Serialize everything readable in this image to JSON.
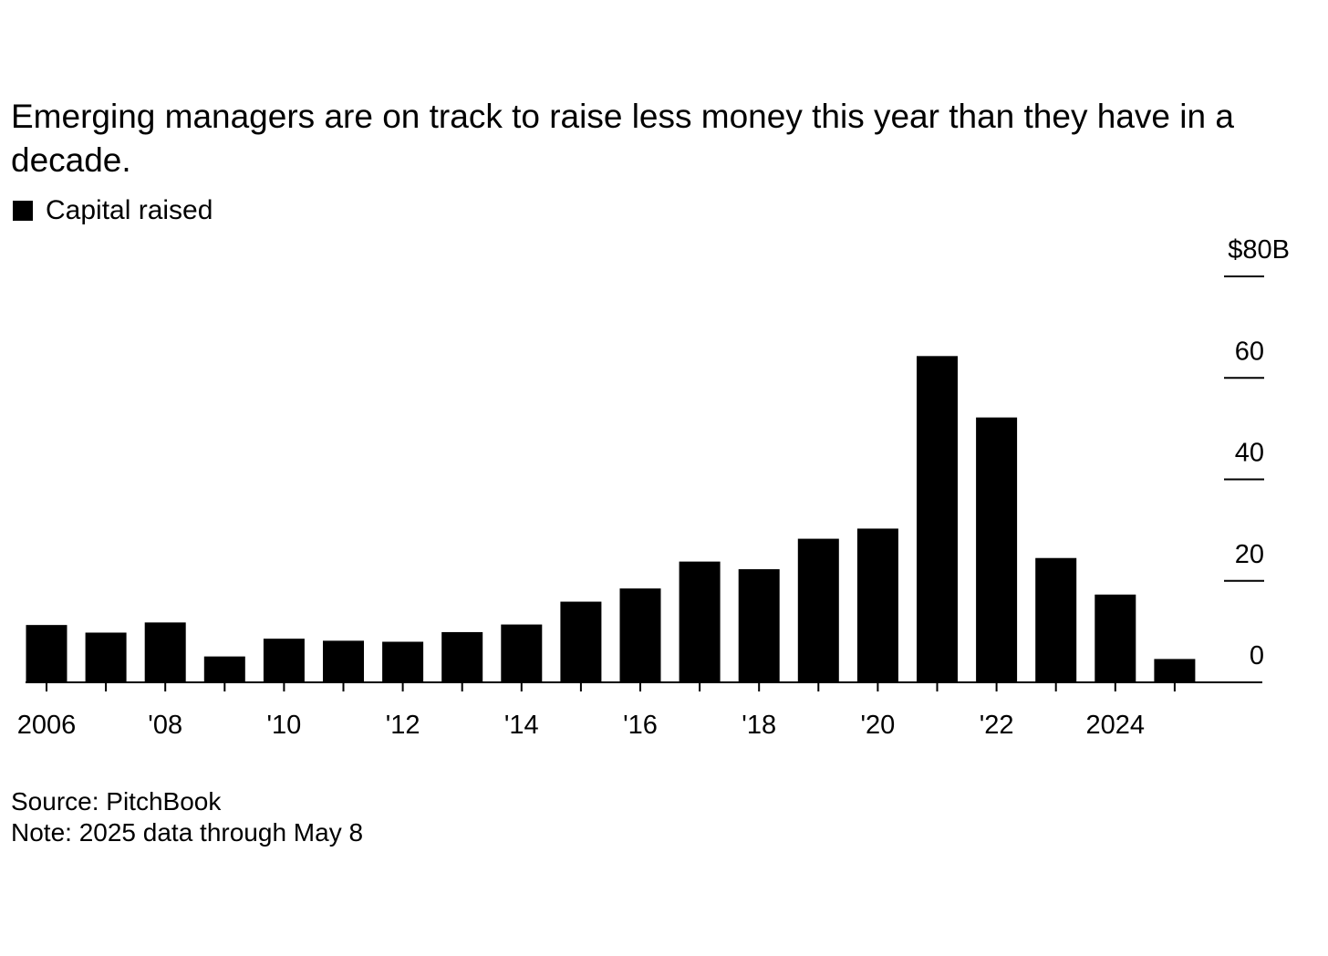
{
  "title": "Emerging managers are on track to raise less money this year than they have in a decade.",
  "legend": {
    "label": "Capital raised",
    "color": "#000000"
  },
  "source": "Source: PitchBook",
  "note": "Note: 2025 data through May 8",
  "chart_data": {
    "type": "bar",
    "title": "Emerging managers are on track to raise less money this year than they have in a decade.",
    "xlabel": "",
    "ylabel": "",
    "ylim": [
      0,
      80
    ],
    "y_ticks": [
      {
        "value": 80,
        "label": "$80B"
      },
      {
        "value": 60,
        "label": "60"
      },
      {
        "value": 40,
        "label": "40"
      },
      {
        "value": 20,
        "label": "20"
      },
      {
        "value": 0,
        "label": "0"
      }
    ],
    "categories": [
      "2006",
      "2007",
      "2008",
      "2009",
      "2010",
      "2011",
      "2012",
      "2013",
      "2014",
      "2015",
      "2016",
      "2017",
      "2018",
      "2019",
      "2020",
      "2021",
      "2022",
      "2023",
      "2024",
      "2025"
    ],
    "x_tick_labels": [
      {
        "category": "2006",
        "label": "2006"
      },
      {
        "category": "2008",
        "label": "'08"
      },
      {
        "category": "2010",
        "label": "'10"
      },
      {
        "category": "2012",
        "label": "'12"
      },
      {
        "category": "2014",
        "label": "'14"
      },
      {
        "category": "2016",
        "label": "'16"
      },
      {
        "category": "2018",
        "label": "'18"
      },
      {
        "category": "2020",
        "label": "'20"
      },
      {
        "category": "2022",
        "label": "'22"
      },
      {
        "category": "2024",
        "label": "2024"
      }
    ],
    "series": [
      {
        "name": "Capital raised",
        "values": [
          11.3,
          9.8,
          11.8,
          5.1,
          8.6,
          8.2,
          8.0,
          9.9,
          11.4,
          15.9,
          18.5,
          23.8,
          22.3,
          28.3,
          30.3,
          64.3,
          52.2,
          24.5,
          17.3,
          4.6
        ]
      }
    ],
    "grid": false,
    "legend_position": "top-left"
  }
}
